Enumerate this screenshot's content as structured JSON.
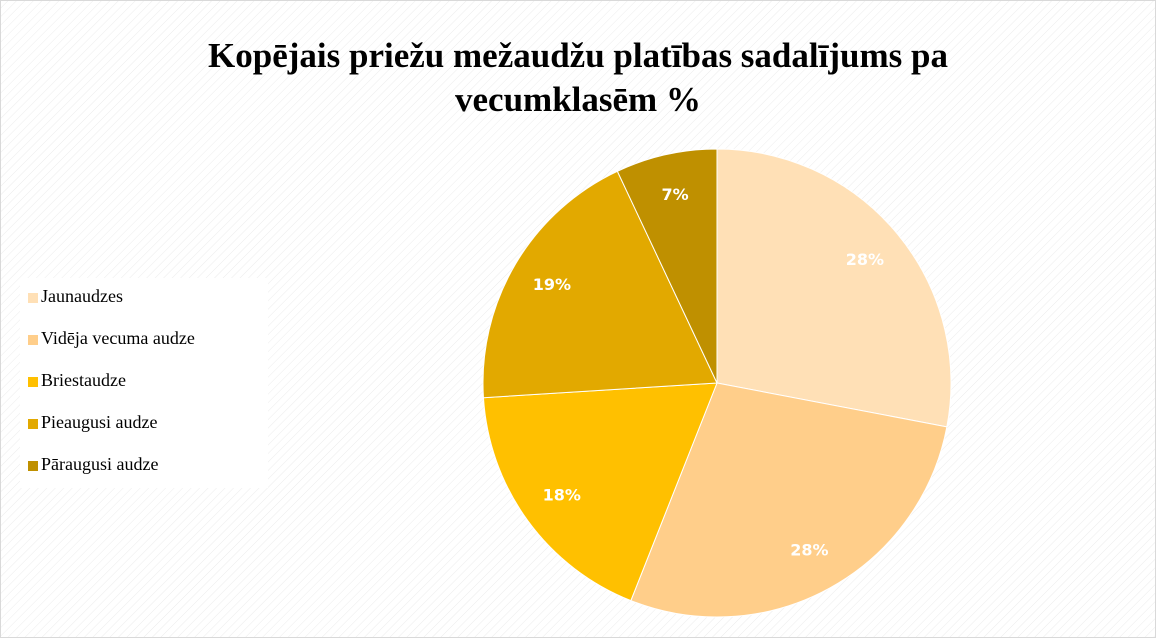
{
  "chart_data": {
    "type": "pie",
    "title": "Kopējais priežu mežaudžu platības sadalījums pa vecumklasēm %",
    "categories": [
      "Jaunaudzes",
      "Vidēja vecuma audze",
      "Briestaudze",
      "Pieaugusi audze",
      "Pāraugusi audze"
    ],
    "values": [
      28,
      28,
      18,
      19,
      7
    ],
    "value_labels": [
      "28%",
      "28%",
      "18%",
      "19%",
      "7%"
    ],
    "colors": [
      "#FFE0B6",
      "#FFCE8A",
      "#FFC000",
      "#E2A900",
      "#BF9000"
    ],
    "legend": "left"
  }
}
